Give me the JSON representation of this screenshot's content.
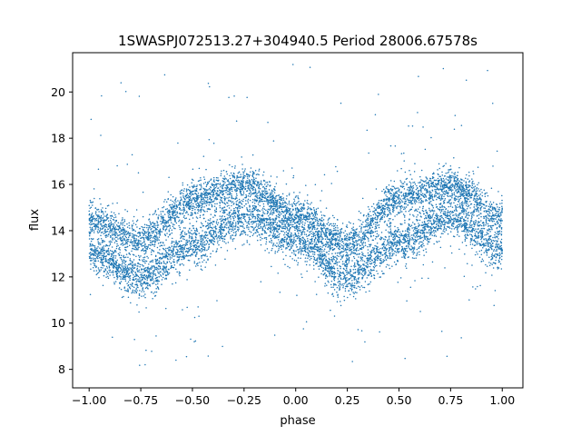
{
  "chart_data": {
    "type": "scatter",
    "title": "1SWASPJ072513.27+304940.5 Period 28006.67578s",
    "xlabel": "phase",
    "ylabel": "flux",
    "xlim": [
      -1.08,
      1.1
    ],
    "ylim": [
      7.2,
      21.7
    ],
    "xticks": [
      -1.0,
      -0.75,
      -0.5,
      -0.25,
      0.0,
      0.25,
      0.5,
      0.75,
      1.0
    ],
    "xtick_labels": [
      "−1.00",
      "−0.75",
      "−0.50",
      "−0.25",
      "0.00",
      "0.25",
      "0.50",
      "0.75",
      "1.00"
    ],
    "yticks": [
      8,
      10,
      12,
      14,
      16,
      18,
      20
    ],
    "ytick_labels": [
      "8",
      "10",
      "12",
      "14",
      "16",
      "18",
      "20"
    ],
    "grid": false,
    "legend": "none",
    "point_color": "#1f77b4",
    "series": [
      {
        "model": "folded light curve (phase repeats with period 1.0)",
        "upper_band": {
          "x": [
            -1.0,
            -0.75,
            -0.5,
            -0.25,
            0.0,
            0.25,
            0.5,
            0.75,
            1.0
          ],
          "y": [
            14.5,
            13.6,
            15.3,
            16.0,
            14.7,
            13.4,
            15.4,
            16.0,
            14.6
          ]
        },
        "lower_band": {
          "x": [
            -1.0,
            -0.75,
            -0.5,
            -0.25,
            0.0,
            0.25,
            0.5,
            0.75,
            1.0
          ],
          "y": [
            13.1,
            12.0,
            13.4,
            14.6,
            13.6,
            12.0,
            13.5,
            14.6,
            13.2
          ]
        }
      }
    ]
  }
}
